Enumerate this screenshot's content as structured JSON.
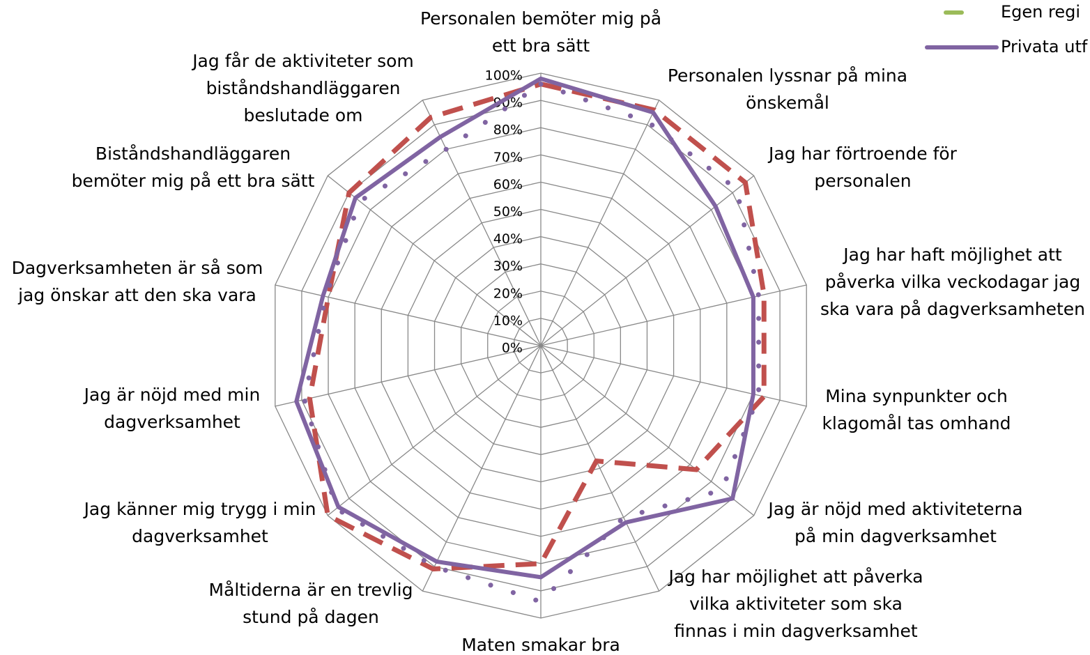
{
  "chart_data": {
    "type": "radar",
    "categories": [
      [
        "Personalen bemöter mig på",
        "ett bra sätt"
      ],
      [
        "Personalen lyssnar på mina",
        "önskemål"
      ],
      [
        "Jag har förtroende för",
        "personalen"
      ],
      [
        "Jag har haft möjlighet att",
        "påverka vilka veckodagar jag",
        "ska vara på dagverksamheten"
      ],
      [
        "Mina synpunkter och",
        "klagomål tas omhand"
      ],
      [
        "Jag är nöjd med aktiviteterna",
        "på min dagverksamhet"
      ],
      [
        "Jag har möjlighet att påverka",
        "vilka aktiviteter som ska",
        "finnas i min dagverksamhet"
      ],
      [
        "Maten smakar bra"
      ],
      [
        "Måltiderna är en trevlig",
        "stund på dagen"
      ],
      [
        "Jag känner mig trygg i min",
        "dagverksamhet"
      ],
      [
        "Jag är nöjd med min",
        "dagverksamhet"
      ],
      [
        "Dagverksamheten är så som",
        "jag önskar att den ska vara"
      ],
      [
        "Biståndshandläggaren",
        "bemöter mig på ett bra sätt"
      ],
      [
        "Jag får de aktiviteter som",
        "biståndshandläggaren",
        "beslutade om"
      ]
    ],
    "series": [
      {
        "name": "Egen regi",
        "color": "#9bbb59"
      },
      {
        "color": "#c0504d",
        "style": "dashed",
        "values": [
          96,
          96,
          96,
          84,
          84,
          73,
          47,
          80,
          91,
          100,
          87,
          80,
          90,
          93
        ]
      },
      {
        "name": "Privata utf",
        "color": "#8064a2",
        "style": "solid",
        "values": [
          98,
          95,
          82,
          80,
          80,
          90,
          72,
          85,
          88,
          95,
          92,
          82,
          87,
          85
        ]
      },
      {
        "color": "#8064a2",
        "style": "dotted",
        "values": [
          96,
          91,
          92,
          82,
          82,
          85,
          70,
          94,
          90,
          96,
          89,
          81,
          85,
          80
        ]
      }
    ],
    "ylim": [
      0,
      100
    ],
    "yticks": [
      {
        "value": 0,
        "label": "0%"
      },
      {
        "value": 10,
        "label": "10%"
      },
      {
        "value": 20,
        "label": "20%"
      },
      {
        "value": 30,
        "label": "30%"
      },
      {
        "value": 40,
        "label": "40%"
      },
      {
        "value": 50,
        "label": "50%"
      },
      {
        "value": 60,
        "label": "60%"
      },
      {
        "value": 70,
        "label": "70%"
      },
      {
        "value": 80,
        "label": "80%"
      },
      {
        "value": 90,
        "label": "90%"
      },
      {
        "value": 100,
        "label": "100%"
      }
    ],
    "grid": true
  }
}
